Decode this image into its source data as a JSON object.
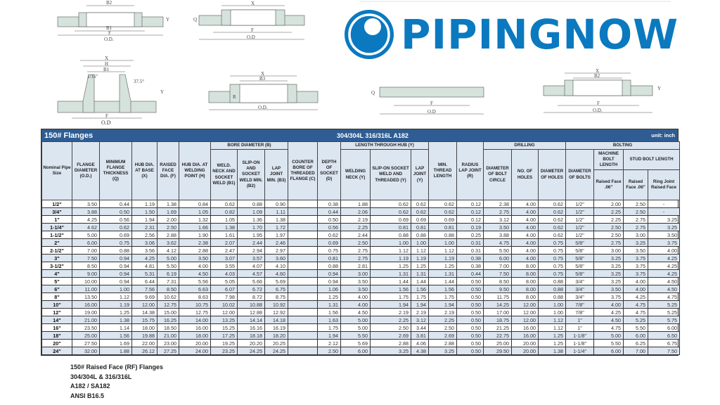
{
  "logo": {
    "text": "PIPINGNOW",
    "color": "#0b79bf"
  },
  "drawings": {
    "socket_weld": {
      "x": "X",
      "b2": "B2",
      "b1": "B1",
      "f": "F",
      "od": "O.D.",
      "d": "D",
      "q": "Q",
      "y": "Y",
      "rf": "1/16\""
    },
    "threaded": {
      "x": "X",
      "f": "F",
      "od": "O.D",
      "q": "Q",
      "y": "Y",
      "rf": "1/16\""
    },
    "weld_neck": {
      "x": "X",
      "h": "H",
      "b1": "B1",
      "f": "F",
      "od": "O.D",
      "rf": "1/16\"",
      "angle": "37.5°",
      "q": "Q",
      "y": "Y"
    },
    "lap_joint": {
      "x": "X",
      "b3": "B3",
      "od": "O.D.",
      "r": "R",
      "q": "Q",
      "y": "Y"
    },
    "blind": {
      "f": "F",
      "od": "O.D",
      "q": "Q",
      "rf": "1/16\""
    },
    "slip_on": {
      "x": "X",
      "b2": "B2",
      "f": "F",
      "od": "O.D.",
      "q": "Q",
      "y": "Y",
      "rf": "1/16\""
    }
  },
  "table": {
    "title": "150# Flanges",
    "material": "304/304L  316/316L  A182",
    "unit": "unit: inch",
    "header_bg": "#dce6f1",
    "title_bg": "#2f5d93",
    "groups": {
      "bore": "BORE DIAMETER (B)",
      "length": "LENGTH THROUGH HUB (Y)",
      "drilling": "DRILLING",
      "bolting": "BOLTING",
      "stud": "STUD BOLT LENGTH"
    },
    "columns": [
      "Nominal Pipe Size",
      "FLANGE DIAMETER (O.D.)",
      "MINIMUM FLANGE THICKNESS (Q)",
      "HUB DIA. AT BASE (X)",
      "RAISED FACE DIA. (F)",
      "HUB DIA. AT WELDING POINT (H)",
      "WELD. NECK AND SOCKET WELD (B1)",
      "SLIP-ON AND SOCKET WELD MIN. (B2)",
      "LAP JOINT MIN. (B3)",
      "COUNTER BORE OF THREADED FLANGE (C)",
      "DEPTH OF SOCKET (D)",
      "WELDING NECK (Y)",
      "SLIP-ON SOCKET WELD AND THREADED (Y)",
      "LAP JOINT (Y)",
      "MIN. THREAD LENGTH",
      "RADIUS LAP JOINT (R)",
      "DIAMETER OF BOLT CIRCLE",
      "NO. OF HOLES",
      "DIAMETER OF HOLES",
      "DIAMETER OF BOLTS",
      "Raised Face .06\"",
      "Raised Face .06\"",
      "Ring Joint Raised Face"
    ],
    "machine_bolt": "MACHINE BOLT LENGTH",
    "rows": [
      [
        "1/2\"",
        "3.50",
        "0.44",
        "1.19",
        "1.38",
        "0.84",
        "0.62",
        "0.88",
        "0.90",
        "",
        "0.38",
        "1.88",
        "0.62",
        "0.62",
        "0.62",
        "0.12",
        "2.38",
        "4.00",
        "0.62",
        "1/2\"",
        "2.00",
        "2.50",
        "-"
      ],
      [
        "3/4\"",
        "3.88",
        "0.50",
        "1.50",
        "1.69",
        "1.05",
        "0.82",
        "1.09",
        "1.11",
        "",
        "0.44",
        "2.06",
        "0.62",
        "0.62",
        "0.62",
        "0.12",
        "2.75",
        "4.00",
        "0.62",
        "1/2\"",
        "2.25",
        "2.50",
        "-"
      ],
      [
        "1\"",
        "4.25",
        "0.56",
        "1.94",
        "2.00",
        "1.32",
        "1.05",
        "1.36",
        "1.38",
        "",
        "0.50",
        "2.19",
        "0.69",
        "0.69",
        "0.69",
        "0.12",
        "3.12",
        "4.00",
        "0.62",
        "1/2\"",
        "2.25",
        "2.75",
        "3.25"
      ],
      [
        "1-1/4\"",
        "4.62",
        "0.62",
        "2.31",
        "2.50",
        "1.66",
        "1.38",
        "1.70",
        "1.72",
        "",
        "0.56",
        "2.25",
        "0.81",
        "0.81",
        "0.81",
        "0.19",
        "3.50",
        "4.00",
        "0.62",
        "1/2\"",
        "2.50",
        "2.75",
        "3.25"
      ],
      [
        "1-1/2\"",
        "5.00",
        "0.69",
        "2.56",
        "2.88",
        "1.90",
        "1.61",
        "1.95",
        "1.97",
        "",
        "0.62",
        "2.44",
        "0.88",
        "0.88",
        "0.88",
        "0.25",
        "3.88",
        "4.00",
        "0.62",
        "1/2\"",
        "2.50",
        "3.00",
        "3.50"
      ],
      [
        "2\"",
        "6.00",
        "0.75",
        "3.06",
        "3.62",
        "2.38",
        "2.07",
        "2.44",
        "2.46",
        "",
        "0.69",
        "2.50",
        "1.00",
        "1.00",
        "1.00",
        "0.31",
        "4.75",
        "4.00",
        "0.75",
        "5/8\"",
        "2.75",
        "3.25",
        "3.75"
      ],
      [
        "2-1/2\"",
        "7.00",
        "0.88",
        "3.56",
        "4.12",
        "2.88",
        "2.47",
        "2.94",
        "2.97",
        "",
        "0.75",
        "2.75",
        "1.12",
        "1.12",
        "1.12",
        "0.31",
        "5.50",
        "4.00",
        "0.75",
        "5/8\"",
        "3.00",
        "3.50",
        "4.00"
      ],
      [
        "3\"",
        "7.50",
        "0.94",
        "4.25",
        "5.00",
        "3.50",
        "3.07",
        "3.57",
        "3.60",
        "",
        "0.81",
        "2.75",
        "1.19",
        "1.19",
        "1.19",
        "0.38",
        "6.00",
        "4.00",
        "0.75",
        "5/8\"",
        "3.25",
        "3.75",
        "4.25"
      ],
      [
        "3-1/2\"",
        "8.50",
        "0.94",
        "4.81",
        "5.50",
        "4.00",
        "3.55",
        "4.07",
        "4.10",
        "",
        "0.88",
        "2.81",
        "1.25",
        "1.25",
        "1.25",
        "0.38",
        "7.00",
        "8.00",
        "0.75",
        "5/8\"",
        "3.25",
        "3.75",
        "4.25"
      ],
      [
        "4\"",
        "9.00",
        "0.94",
        "5.31",
        "6.19",
        "4.50",
        "4.03",
        "4.57",
        "4.60",
        "",
        "0.94",
        "3.00",
        "1.31",
        "1.31",
        "1.31",
        "0.44",
        "7.50",
        "8.00",
        "0.75",
        "5/8\"",
        "3.25",
        "3.75",
        "4.25"
      ],
      [
        "5\"",
        "10.00",
        "0.94",
        "6.44",
        "7.31",
        "5.56",
        "5.05",
        "5.66",
        "5.69",
        "",
        "0.94",
        "3.50",
        "1.44",
        "1.44",
        "1.44",
        "0.50",
        "8.50",
        "8.00",
        "0.88",
        "3/4\"",
        "3.25",
        "4.00",
        "4.50"
      ],
      [
        "6\"",
        "11.00",
        "1.00",
        "7.56",
        "8.50",
        "6.63",
        "6.07",
        "6.72",
        "6.75",
        "",
        "1.06",
        "3.50",
        "1.56",
        "1.56",
        "1.56",
        "0.50",
        "9.50",
        "8.00",
        "0.88",
        "3/4\"",
        "3.50",
        "4.00",
        "4.50"
      ],
      [
        "8\"",
        "13.50",
        "1.12",
        "9.69",
        "10.62",
        "8.63",
        "7.98",
        "8.72",
        "8.75",
        "",
        "1.25",
        "4.00",
        "1.75",
        "1.75",
        "1.75",
        "0.50",
        "11.75",
        "8.00",
        "0.88",
        "3/4\"",
        "3.75",
        "4.25",
        "4.75"
      ],
      [
        "10\"",
        "16.00",
        "1.19",
        "12.00",
        "12.75",
        "10.75",
        "10.02",
        "10.88",
        "10.92",
        "",
        "1.31",
        "4.00",
        "1.94",
        "1.94",
        "1.94",
        "0.50",
        "14.25",
        "12.00",
        "1.00",
        "7/8\"",
        "4.00",
        "4.75",
        "5.25"
      ],
      [
        "12\"",
        "19.00",
        "1.25",
        "14.38",
        "15.00",
        "12.75",
        "12.00",
        "12.88",
        "12.92",
        "",
        "1.56",
        "4.50",
        "2.19",
        "2.19",
        "2.19",
        "0.50",
        "17.00",
        "12.00",
        "1.00",
        "7/8\"",
        "4.25",
        "4.75",
        "5.25"
      ],
      [
        "14\"",
        "21.00",
        "1.38",
        "15.75",
        "16.25",
        "14.00",
        "13.25",
        "14.14",
        "14.18",
        "",
        "1.63",
        "5.00",
        "2.25",
        "3.12",
        "2.25",
        "0.50",
        "18.75",
        "12.00",
        "1.12",
        "1\"",
        "4.50",
        "5.25",
        "5.75"
      ],
      [
        "16\"",
        "23.50",
        "1.14",
        "18.00",
        "18.50",
        "16.00",
        "15.25",
        "16.16",
        "16.19",
        "",
        "1.75",
        "5.00",
        "2.50",
        "3.44",
        "2.50",
        "0.50",
        "21.25",
        "16.00",
        "1.12",
        "1\"",
        "4.75",
        "5.50",
        "6.00"
      ],
      [
        "18\"",
        "25.00",
        "1.56",
        "19.88",
        "21.00",
        "18.00",
        "17.25",
        "18.18",
        "18.20",
        "",
        "1.94",
        "5.50",
        "2.69",
        "3.81",
        "2.69",
        "0.50",
        "22.75",
        "16.00",
        "1.25",
        "1-1/8\"",
        "5.00",
        "6.00",
        "6.50"
      ],
      [
        "20\"",
        "27.50",
        "1.69",
        "22.00",
        "23.00",
        "20.00",
        "19.25",
        "20.20",
        "20.25",
        "",
        "2.12",
        "5.69",
        "2.88",
        "4.06",
        "2.88",
        "0.50",
        "25.00",
        "20.00",
        "1.25",
        "1-1/8\"",
        "5.50",
        "6.25",
        "6.75"
      ],
      [
        "24\"",
        "32.00",
        "1.88",
        "26.12",
        "27.25",
        "24.00",
        "23.25",
        "24.25",
        "24.25",
        "",
        "2.50",
        "6.00",
        "3.25",
        "4.38",
        "3.25",
        "0.50",
        "29.50",
        "20.00",
        "1.38",
        "1-1/4\"",
        "6.00",
        "7.00",
        "7.50"
      ]
    ]
  },
  "notes": [
    "150# Raised Face (RF) Flanges",
    "304/304L & 316/316L",
    "A182 / SA182",
    "ANSI B16.5"
  ]
}
